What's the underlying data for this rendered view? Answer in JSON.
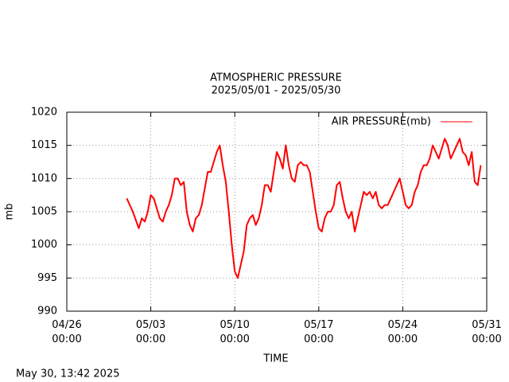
{
  "chart_data": {
    "type": "line",
    "title": "ATMOSPHERIC PRESSURE",
    "subtitle": "2025/05/01 - 2025/05/30",
    "x_label": "TIME",
    "y_label": "mb",
    "footer": "May 30, 13:42 2025",
    "legend": "top-right",
    "grid": true,
    "xlim": [
      "04/26 00:00",
      "05/31 00:00"
    ],
    "xticks": [
      {
        "value": "04/26 00:00",
        "label": "04/26\n00:00"
      },
      {
        "value": "05/03 00:00",
        "label": "05/03\n00:00"
      },
      {
        "value": "05/10 00:00",
        "label": "05/10\n00:00"
      },
      {
        "value": "05/17 00:00",
        "label": "05/17\n00:00"
      },
      {
        "value": "05/24 00:00",
        "label": "05/24\n00:00"
      },
      {
        "value": "05/31 00:00",
        "label": "05/31\n00:00"
      }
    ],
    "ylim": [
      990,
      1020
    ],
    "yticks": [
      990,
      995,
      1000,
      1005,
      1010,
      1015,
      1020
    ],
    "x": [
      "05/01 00:00",
      "05/01 12:00",
      "05/02 00:00",
      "05/02 06:00",
      "05/02 12:00",
      "05/02 18:00",
      "05/03 00:00",
      "05/03 06:00",
      "05/03 12:00",
      "05/03 18:00",
      "05/04 00:00",
      "05/04 06:00",
      "05/04 12:00",
      "05/04 18:00",
      "05/05 00:00",
      "05/05 06:00",
      "05/05 12:00",
      "05/05 18:00",
      "05/06 00:00",
      "05/06 06:00",
      "05/06 12:00",
      "05/06 18:00",
      "05/07 00:00",
      "05/07 06:00",
      "05/07 12:00",
      "05/07 18:00",
      "05/08 00:00",
      "05/08 06:00",
      "05/08 12:00",
      "05/08 18:00",
      "05/09 00:00",
      "05/09 06:00",
      "05/09 12:00",
      "05/09 18:00",
      "05/10 00:00",
      "05/10 06:00",
      "05/10 12:00",
      "05/10 18:00",
      "05/11 00:00",
      "05/11 06:00",
      "05/11 12:00",
      "05/11 18:00",
      "05/12 00:00",
      "05/12 06:00",
      "05/12 12:00",
      "05/12 18:00",
      "05/13 00:00",
      "05/13 06:00",
      "05/13 12:00",
      "05/13 18:00",
      "05/14 00:00",
      "05/14 06:00",
      "05/14 12:00",
      "05/14 18:00",
      "05/15 00:00",
      "05/15 06:00",
      "05/15 12:00",
      "05/15 18:00",
      "05/16 00:00",
      "05/16 06:00",
      "05/16 12:00",
      "05/16 18:00",
      "05/17 00:00",
      "05/17 06:00",
      "05/17 12:00",
      "05/17 18:00",
      "05/18 00:00",
      "05/18 06:00",
      "05/18 12:00",
      "05/18 18:00",
      "05/19 00:00",
      "05/19 06:00",
      "05/19 12:00",
      "05/19 18:00",
      "05/20 00:00",
      "05/20 06:00",
      "05/20 12:00",
      "05/20 18:00",
      "05/21 00:00",
      "05/21 06:00",
      "05/21 12:00",
      "05/21 18:00",
      "05/22 00:00",
      "05/22 06:00",
      "05/22 12:00",
      "05/22 18:00",
      "05/23 00:00",
      "05/23 06:00",
      "05/23 12:00",
      "05/23 18:00",
      "05/24 00:00",
      "05/24 06:00",
      "05/24 12:00",
      "05/24 18:00",
      "05/25 00:00",
      "05/25 06:00",
      "05/25 12:00",
      "05/25 18:00",
      "05/26 00:00",
      "05/26 06:00",
      "05/26 12:00",
      "05/26 18:00",
      "05/27 00:00",
      "05/27 06:00",
      "05/27 12:00",
      "05/27 18:00",
      "05/28 00:00",
      "05/28 06:00",
      "05/28 12:00",
      "05/28 18:00",
      "05/29 00:00",
      "05/29 06:00",
      "05/29 12:00",
      "05/29 18:00",
      "05/30 00:00",
      "05/30 06:00",
      "05/30 12:00"
    ],
    "series": [
      {
        "name": "AIR PRESSURE(mb)",
        "color": "#ff0000",
        "values": [
          1007,
          1005,
          1002.5,
          1004,
          1003.5,
          1005,
          1007.5,
          1007,
          1005.5,
          1004,
          1003.5,
          1005,
          1006,
          1007.5,
          1010,
          1010,
          1009,
          1009.5,
          1005,
          1003,
          1002,
          1004,
          1004.5,
          1006,
          1008.5,
          1011,
          1011,
          1012.5,
          1014,
          1015,
          1012,
          1009.5,
          1005,
          1000,
          996,
          995,
          997,
          999,
          1003,
          1004,
          1004.5,
          1003,
          1004,
          1006,
          1009,
          1009,
          1008,
          1011,
          1014,
          1013,
          1011.5,
          1015,
          1012,
          1010,
          1009.5,
          1012,
          1012.5,
          1012,
          1012,
          1011,
          1008,
          1005,
          1002.5,
          1002,
          1004,
          1005,
          1005,
          1006,
          1009,
          1009.5,
          1007,
          1005,
          1004,
          1005,
          1002,
          1004,
          1006,
          1008,
          1007.5,
          1008,
          1007,
          1008,
          1006,
          1005.5,
          1006,
          1006,
          1007,
          1008,
          1009,
          1010,
          1008,
          1006,
          1005.5,
          1006,
          1008,
          1009,
          1011,
          1012,
          1012,
          1013,
          1015,
          1014,
          1013,
          1014.5,
          1016,
          1015,
          1013,
          1014,
          1015,
          1016,
          1014,
          1013.5,
          1012,
          1014,
          1009.5,
          1009,
          1012
        ]
      }
    ]
  }
}
